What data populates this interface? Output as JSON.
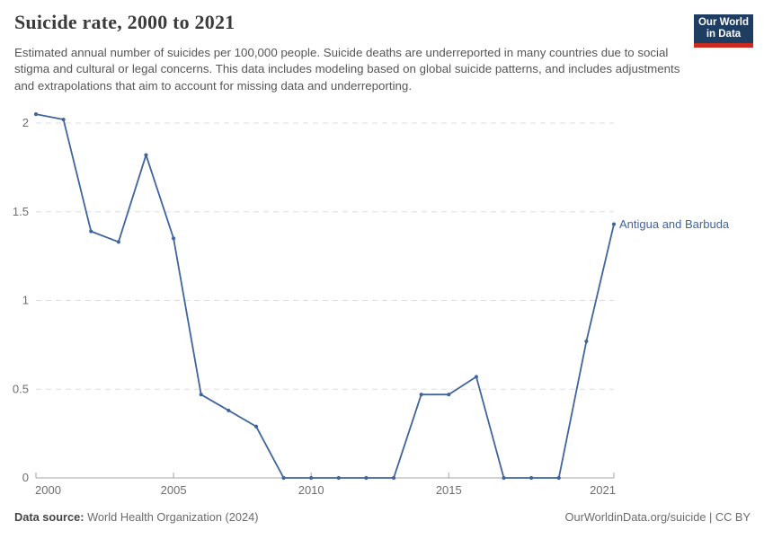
{
  "header": {
    "title": "Suicide rate, 2000 to 2021",
    "subtitle": "Estimated annual number of suicides per 100,000 people. Suicide deaths are underreported in many countries due to social stigma and cultural or legal concerns. This data includes modeling based on global suicide patterns, and includes adjustments and extrapolations that aim to account for missing data and underreporting."
  },
  "logo": {
    "line1": "Our World",
    "line2": "in Data",
    "bg_color": "#1d3d63",
    "bar_color": "#cb2a1e"
  },
  "chart_data": {
    "type": "line",
    "title": "Suicide rate, 2000 to 2021",
    "x": [
      2000,
      2001,
      2002,
      2003,
      2004,
      2005,
      2006,
      2007,
      2008,
      2009,
      2010,
      2011,
      2012,
      2013,
      2014,
      2015,
      2016,
      2017,
      2018,
      2019,
      2020,
      2021
    ],
    "series": [
      {
        "name": "Antigua and Barbuda",
        "color": "#3f649e",
        "values": [
          2.05,
          2.02,
          1.39,
          1.33,
          1.82,
          1.35,
          0.47,
          0.38,
          0.29,
          0,
          0,
          0,
          0,
          0,
          0.47,
          0.47,
          0.57,
          0,
          0,
          0,
          0.77,
          1.43
        ]
      }
    ],
    "xlabel": "",
    "ylabel": "",
    "ylim": [
      0,
      2.05
    ],
    "y_ticks": [
      0,
      0.5,
      1,
      1.5,
      2
    ],
    "y_tick_labels": [
      "0",
      "0.5",
      "1",
      "1.5",
      "2"
    ],
    "x_ticks": [
      2000,
      2005,
      2010,
      2015,
      2021
    ],
    "grid": "dashed-horizontal",
    "legend_position": "end-of-line-label"
  },
  "footer": {
    "source_label": "Data source:",
    "source_value": " World Health Organization (2024)",
    "attribution": "OurWorldinData.org/suicide | CC BY"
  },
  "colors": {
    "line": "#3f649e",
    "grid": "#dddddd",
    "axis": "#a3a3a3",
    "tick_text": "#6e6e6e",
    "title": "#3b3b3b",
    "subtitle": "#565656"
  }
}
